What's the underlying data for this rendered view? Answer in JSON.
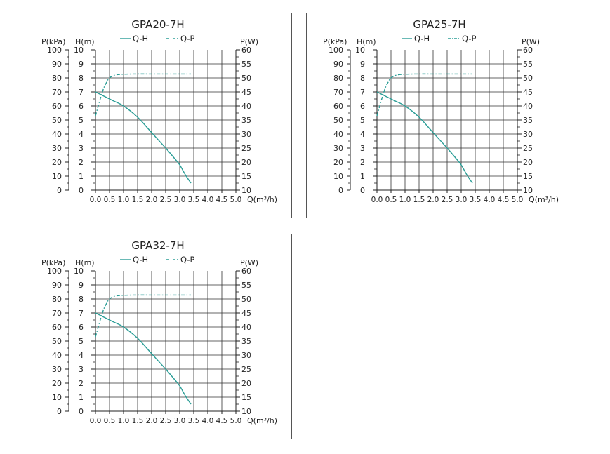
{
  "chart_data": [
    {
      "type": "line",
      "title": "GPA20-7H",
      "legend": {
        "placement": "top-center",
        "entries": [
          "Q-H",
          "Q-P"
        ]
      },
      "left_outer_axis": {
        "label": "P(kPa)",
        "range": [
          0,
          100
        ],
        "ticks": [
          "0",
          "10",
          "20",
          "30",
          "40",
          "50",
          "60",
          "70",
          "80",
          "90",
          "100"
        ]
      },
      "left_axis": {
        "label": "H(m)",
        "range": [
          0,
          10
        ],
        "ticks": [
          "0",
          "1",
          "2",
          "3",
          "4",
          "5",
          "6",
          "7",
          "8",
          "9",
          "10"
        ]
      },
      "right_axis": {
        "label": "P(W)",
        "range": [
          10,
          60
        ],
        "ticks": [
          "10",
          "15",
          "20",
          "25",
          "30",
          "35",
          "40",
          "45",
          "50",
          "55",
          "60"
        ]
      },
      "x_axis": {
        "label": "Q(m³/h)",
        "range": [
          0,
          5
        ],
        "ticks": [
          "0.0",
          "0.5",
          "1.0",
          "1.5",
          "2.0",
          "2.5",
          "3.0",
          "3.5",
          "4.0",
          "4.5",
          "5.0"
        ]
      },
      "grid": true,
      "series": [
        {
          "name": "Q-H",
          "style": "solid",
          "color": "#2a9d96",
          "axis": "H",
          "x": [
            0.0,
            0.3,
            0.6,
            1.0,
            1.5,
            2.0,
            2.5,
            2.8,
            3.0,
            3.2,
            3.4
          ],
          "y": [
            7.0,
            6.7,
            6.4,
            6.0,
            5.2,
            4.1,
            3.0,
            2.3,
            1.8,
            1.1,
            0.5
          ]
        },
        {
          "name": "Q-P",
          "style": "dash-dot",
          "color": "#2a9d96",
          "axis": "P(W)",
          "x": [
            0.0,
            0.1,
            0.2,
            0.3,
            0.4,
            0.5,
            0.7,
            1.0,
            1.5,
            2.0,
            3.0,
            3.4
          ],
          "y": [
            36.5,
            40.0,
            43.5,
            46.5,
            48.5,
            50.0,
            51.0,
            51.3,
            51.4,
            51.4,
            51.4,
            51.4
          ]
        }
      ]
    },
    {
      "type": "line",
      "title": "GPA25-7H",
      "legend": {
        "placement": "top-center",
        "entries": [
          "Q-H",
          "Q-P"
        ]
      },
      "left_outer_axis": {
        "label": "P(kPa)",
        "range": [
          0,
          100
        ],
        "ticks": [
          "0",
          "10",
          "20",
          "30",
          "40",
          "50",
          "60",
          "70",
          "80",
          "90",
          "100"
        ]
      },
      "left_axis": {
        "label": "H(m)",
        "range": [
          0,
          10
        ],
        "ticks": [
          "0",
          "1",
          "2",
          "3",
          "4",
          "5",
          "6",
          "7",
          "8",
          "9",
          "10"
        ]
      },
      "right_axis": {
        "label": "P(W)",
        "range": [
          10,
          60
        ],
        "ticks": [
          "10",
          "15",
          "20",
          "25",
          "30",
          "35",
          "40",
          "45",
          "50",
          "55",
          "60"
        ]
      },
      "x_axis": {
        "label": "Q(m³/h)",
        "range": [
          0,
          5
        ],
        "ticks": [
          "0.0",
          "0.5",
          "1.0",
          "1.5",
          "2.0",
          "2.5",
          "3.0",
          "3.5",
          "4.0",
          "4.5",
          "5.0"
        ]
      },
      "grid": true,
      "series": [
        {
          "name": "Q-H",
          "style": "solid",
          "color": "#2a9d96",
          "axis": "H",
          "x": [
            0.0,
            0.3,
            0.6,
            1.0,
            1.5,
            2.0,
            2.5,
            2.8,
            3.0,
            3.2,
            3.4
          ],
          "y": [
            7.0,
            6.7,
            6.4,
            6.0,
            5.2,
            4.1,
            3.0,
            2.3,
            1.8,
            1.1,
            0.5
          ]
        },
        {
          "name": "Q-P",
          "style": "dash-dot",
          "color": "#2a9d96",
          "axis": "P(W)",
          "x": [
            0.0,
            0.1,
            0.2,
            0.3,
            0.4,
            0.5,
            0.7,
            1.0,
            1.5,
            2.0,
            3.0,
            3.4
          ],
          "y": [
            36.5,
            40.0,
            43.5,
            46.5,
            48.5,
            50.0,
            51.0,
            51.3,
            51.4,
            51.4,
            51.4,
            51.4
          ]
        }
      ]
    },
    {
      "type": "line",
      "title": "GPA32-7H",
      "legend": {
        "placement": "top-center",
        "entries": [
          "Q-H",
          "Q-P"
        ]
      },
      "left_outer_axis": {
        "label": "P(kPa)",
        "range": [
          0,
          100
        ],
        "ticks": [
          "0",
          "10",
          "20",
          "30",
          "40",
          "50",
          "60",
          "70",
          "80",
          "90",
          "100"
        ]
      },
      "left_axis": {
        "label": "H(m)",
        "range": [
          0,
          10
        ],
        "ticks": [
          "0",
          "1",
          "2",
          "3",
          "4",
          "5",
          "6",
          "7",
          "8",
          "9",
          "10"
        ]
      },
      "right_axis": {
        "label": "P(W)",
        "range": [
          10,
          60
        ],
        "ticks": [
          "10",
          "15",
          "20",
          "25",
          "30",
          "35",
          "40",
          "45",
          "50",
          "55",
          "60"
        ]
      },
      "x_axis": {
        "label": "Q(m³/h)",
        "range": [
          0,
          5
        ],
        "ticks": [
          "0.0",
          "0.5",
          "1.0",
          "1.5",
          "2.0",
          "2.5",
          "3.0",
          "3.5",
          "4.0",
          "4.5",
          "5.0"
        ]
      },
      "grid": true,
      "series": [
        {
          "name": "Q-H",
          "style": "solid",
          "color": "#2a9d96",
          "axis": "H",
          "x": [
            0.0,
            0.3,
            0.6,
            1.0,
            1.5,
            2.0,
            2.5,
            2.8,
            3.0,
            3.2,
            3.4
          ],
          "y": [
            7.0,
            6.7,
            6.4,
            6.0,
            5.2,
            4.1,
            3.0,
            2.3,
            1.8,
            1.1,
            0.5
          ]
        },
        {
          "name": "Q-P",
          "style": "dash-dot",
          "color": "#2a9d96",
          "axis": "P(W)",
          "x": [
            0.0,
            0.1,
            0.2,
            0.3,
            0.4,
            0.5,
            0.7,
            1.0,
            1.5,
            2.0,
            3.0,
            3.4
          ],
          "y": [
            36.5,
            40.0,
            43.5,
            46.5,
            48.5,
            50.0,
            51.0,
            51.3,
            51.4,
            51.4,
            51.4,
            51.4
          ]
        }
      ]
    }
  ]
}
